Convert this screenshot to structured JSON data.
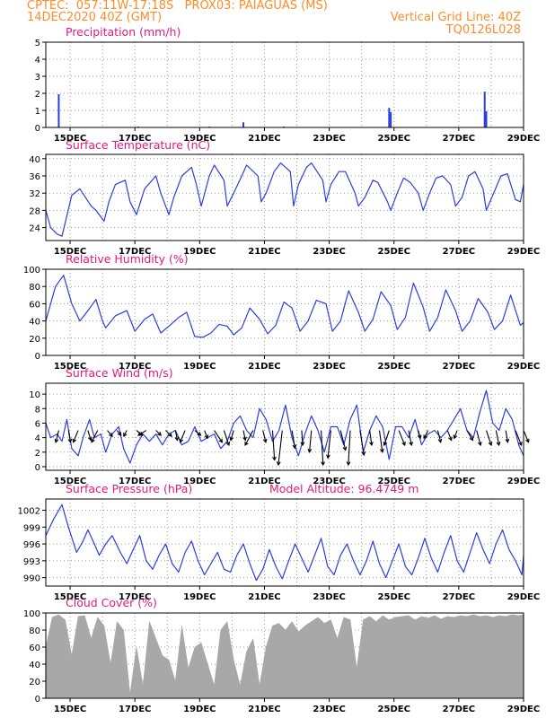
{
  "header": {
    "line1": "CPTEC:  057:11W-17:18S   PROX03: PAIAGUAS (MS)",
    "line2": "14DEC2020 40Z (GMT)",
    "grid_note": "Vertical Grid Line: 40Z",
    "code": "TQ0126L028"
  },
  "colors": {
    "header": "#ff8c2a",
    "title": "#e6197d",
    "series": "#2a3fe0",
    "cloud": "#a8a8a8",
    "wind_arrow": "#000000"
  },
  "x_axis": {
    "start_day": 14.25,
    "end_day": 29.0,
    "tick_days": [
      15,
      17,
      19,
      21,
      23,
      25,
      27,
      29
    ],
    "tick_labels": [
      "15DEC",
      "17DEC",
      "19DEC",
      "21DEC",
      "23DEC",
      "25DEC",
      "27DEC",
      "29DEC"
    ]
  },
  "chart_data": [
    {
      "type": "bar",
      "title": "Precipitation (mm/h)",
      "ylim": [
        0,
        5
      ],
      "yticks": [
        0,
        1,
        2,
        3,
        4,
        5
      ],
      "ytick_labels": [
        "0",
        "1",
        "2",
        "3",
        "4",
        "5"
      ],
      "x": [
        14.65,
        17.1,
        19.3,
        20.35,
        21.6,
        24.85,
        24.9,
        27.8,
        27.85
      ],
      "values": [
        1.95,
        0.05,
        0.05,
        0.3,
        0.05,
        1.15,
        0.9,
        2.1,
        0.95
      ]
    },
    {
      "type": "line",
      "title": "Surface Temperature (nC)",
      "ylim": [
        21,
        41
      ],
      "yticks": [
        24,
        28,
        32,
        36,
        40
      ],
      "ytick_labels": [
        "24",
        "28",
        "32",
        "36",
        "40"
      ],
      "x": [
        14.25,
        14.4,
        14.6,
        14.75,
        15.05,
        15.3,
        15.65,
        15.8,
        16.05,
        16.2,
        16.4,
        16.7,
        16.85,
        17.05,
        17.3,
        17.65,
        17.8,
        18.05,
        18.2,
        18.45,
        18.75,
        18.9,
        19.05,
        19.3,
        19.45,
        19.75,
        19.85,
        20.05,
        20.3,
        20.45,
        20.8,
        20.9,
        21.05,
        21.3,
        21.5,
        21.8,
        21.9,
        22.05,
        22.3,
        22.45,
        22.8,
        22.9,
        23.05,
        23.3,
        23.5,
        23.8,
        23.9,
        24.1,
        24.35,
        24.5,
        24.8,
        24.9,
        25.1,
        25.3,
        25.5,
        25.75,
        25.9,
        26.1,
        26.3,
        26.5,
        26.75,
        26.9,
        27.1,
        27.3,
        27.5,
        27.75,
        27.85,
        28.05,
        28.3,
        28.5,
        28.75,
        28.9,
        29.0
      ],
      "values": [
        28,
        24,
        22.5,
        22,
        31.5,
        33,
        29,
        28,
        25.5,
        30,
        34,
        35,
        30,
        27,
        33,
        36,
        32,
        27,
        31,
        36,
        38,
        34,
        29,
        36,
        38.5,
        35,
        29,
        32,
        36,
        38.5,
        36,
        30,
        32,
        37,
        39,
        37,
        29,
        34,
        38,
        39,
        35,
        30,
        34,
        37,
        37,
        32,
        29,
        31,
        35,
        34.5,
        30,
        28,
        32,
        35.5,
        34.5,
        32,
        28,
        32,
        35.5,
        36,
        34,
        29,
        31,
        36,
        37,
        33,
        28,
        31.5,
        36,
        36.5,
        30.5,
        30,
        34
      ]
    },
    {
      "type": "line",
      "title": "Relative Humidity (%)",
      "ylim": [
        0,
        100
      ],
      "yticks": [
        0,
        20,
        40,
        60,
        80,
        100
      ],
      "ytick_labels": [
        "0",
        "20",
        "40",
        "60",
        "80",
        "100"
      ],
      "x": [
        14.25,
        14.55,
        14.8,
        15.05,
        15.3,
        15.55,
        15.8,
        16.0,
        16.1,
        16.4,
        16.75,
        17.0,
        17.3,
        17.55,
        17.8,
        18.05,
        18.35,
        18.6,
        18.85,
        19.1,
        19.35,
        19.6,
        19.85,
        20.05,
        20.3,
        20.55,
        20.85,
        21.1,
        21.35,
        21.6,
        21.85,
        22.1,
        22.35,
        22.6,
        22.9,
        23.1,
        23.35,
        23.6,
        23.9,
        24.1,
        24.35,
        24.6,
        24.9,
        25.1,
        25.35,
        25.6,
        25.9,
        26.1,
        26.35,
        26.6,
        26.9,
        27.1,
        27.35,
        27.6,
        27.9,
        28.1,
        28.35,
        28.6,
        28.9,
        29.0
      ],
      "values": [
        40,
        80,
        93,
        60,
        40,
        52,
        65,
        40,
        32,
        46,
        52,
        28,
        42,
        48,
        26,
        34,
        44,
        50,
        22,
        21,
        26,
        36,
        34,
        24,
        32,
        55,
        42,
        25,
        35,
        62,
        55,
        28,
        40,
        64,
        60,
        28,
        40,
        75,
        50,
        28,
        42,
        74,
        58,
        30,
        44,
        84,
        56,
        28,
        44,
        76,
        52,
        28,
        40,
        66,
        50,
        30,
        40,
        70,
        35,
        38
      ]
    },
    {
      "type": "line",
      "title": "Surface Wind (m/s)",
      "ylim": [
        -0.5,
        11.5
      ],
      "yticks": [
        0,
        2,
        4,
        6,
        8,
        10
      ],
      "ytick_labels": [
        "0",
        "2",
        "4",
        "6",
        "8",
        "10"
      ],
      "x": [
        14.25,
        14.4,
        14.6,
        14.75,
        14.9,
        15.05,
        15.25,
        15.4,
        15.6,
        15.75,
        15.95,
        16.1,
        16.3,
        16.5,
        16.65,
        16.85,
        17.05,
        17.25,
        17.45,
        17.65,
        17.85,
        18.05,
        18.25,
        18.45,
        18.65,
        18.85,
        19.05,
        19.25,
        19.45,
        19.65,
        19.85,
        20.05,
        20.25,
        20.45,
        20.65,
        20.85,
        21.05,
        21.25,
        21.45,
        21.65,
        21.85,
        22.05,
        22.25,
        22.45,
        22.65,
        22.85,
        23.05,
        23.25,
        23.45,
        23.65,
        23.85,
        24.05,
        24.25,
        24.45,
        24.65,
        24.85,
        25.05,
        25.25,
        25.45,
        25.65,
        25.85,
        26.05,
        26.25,
        26.45,
        26.65,
        26.85,
        27.05,
        27.25,
        27.45,
        27.65,
        27.85,
        28.05,
        28.25,
        28.45,
        28.65,
        28.85,
        29.0
      ],
      "values": [
        6,
        4,
        4.5,
        3.5,
        6.5,
        2.5,
        1.5,
        4,
        6.5,
        4,
        4.5,
        2,
        4.5,
        5.5,
        2.5,
        0.5,
        3,
        4.5,
        3.5,
        4.5,
        3,
        4.5,
        5,
        3,
        3.5,
        5.5,
        3.5,
        4,
        4.5,
        2.5,
        3.5,
        6,
        7,
        5,
        4,
        8,
        6.5,
        3.5,
        5,
        8.5,
        4,
        1.5,
        4.5,
        7,
        5,
        2,
        5.5,
        5.5,
        3,
        6.5,
        8.5,
        2,
        5,
        7,
        5.5,
        1,
        5.5,
        5.5,
        4,
        6.5,
        3,
        4.5,
        5,
        4,
        5,
        6.5,
        8,
        5,
        4,
        7.5,
        10.5,
        6,
        5,
        8,
        6.5,
        3,
        1.5
      ]
    },
    {
      "type": "line",
      "title": "Surface Pressure (hPa)",
      "subtitle": "Model Altitude: 96.4749  m",
      "ylim": [
        988.5,
        1004
      ],
      "yticks": [
        990,
        993,
        996,
        999,
        1002
      ],
      "ytick_labels": [
        "990",
        "993",
        "996",
        "999",
        "1002"
      ],
      "x": [
        14.25,
        14.5,
        14.75,
        14.95,
        15.2,
        15.4,
        15.55,
        15.75,
        15.9,
        16.1,
        16.3,
        16.55,
        16.75,
        16.95,
        17.15,
        17.35,
        17.55,
        17.75,
        17.95,
        18.15,
        18.35,
        18.55,
        18.75,
        18.95,
        19.15,
        19.35,
        19.55,
        19.75,
        19.95,
        20.15,
        20.35,
        20.55,
        20.75,
        20.95,
        21.15,
        21.35,
        21.55,
        21.75,
        21.95,
        22.15,
        22.35,
        22.55,
        22.75,
        22.95,
        23.15,
        23.35,
        23.55,
        23.75,
        23.95,
        24.15,
        24.35,
        24.55,
        24.75,
        24.95,
        25.15,
        25.35,
        25.55,
        25.75,
        25.95,
        26.15,
        26.35,
        26.55,
        26.75,
        26.95,
        27.15,
        27.35,
        27.55,
        27.75,
        27.95,
        28.15,
        28.35,
        28.55,
        28.75,
        28.95,
        29.0
      ],
      "values": [
        997.5,
        1000.5,
        1003,
        999,
        994.5,
        996.5,
        998.5,
        996,
        994,
        996,
        997.5,
        994.5,
        992.5,
        995,
        997.5,
        993,
        991.5,
        994,
        996,
        992.5,
        991,
        994.5,
        996.5,
        993,
        990.5,
        992.5,
        994.5,
        991.5,
        991,
        994,
        996,
        992.5,
        989.5,
        991.5,
        995,
        992,
        989.8,
        993,
        996,
        993.5,
        991,
        994,
        997,
        992,
        990.5,
        994,
        996,
        993,
        990.5,
        993,
        996.5,
        992.5,
        990,
        993,
        996,
        992,
        990.5,
        993.5,
        997,
        993.5,
        991,
        994.5,
        997.5,
        993,
        991,
        994.5,
        998,
        995,
        992.5,
        996,
        998.5,
        995,
        993,
        990.5,
        994
      ]
    },
    {
      "type": "area",
      "title": "Cloud Cover (%)",
      "ylim": [
        0,
        100
      ],
      "yticks": [
        0,
        20,
        40,
        60,
        80,
        100
      ],
      "ytick_labels": [
        "0",
        "20",
        "40",
        "60",
        "80",
        "100"
      ],
      "x": [
        14.25,
        14.45,
        14.65,
        14.85,
        15.05,
        15.25,
        15.45,
        15.65,
        15.85,
        16.05,
        16.25,
        16.45,
        16.65,
        16.85,
        17.05,
        17.25,
        17.45,
        17.65,
        17.85,
        18.05,
        18.25,
        18.45,
        18.65,
        18.85,
        19.05,
        19.25,
        19.45,
        19.65,
        19.85,
        20.05,
        20.25,
        20.45,
        20.65,
        20.85,
        21.05,
        21.25,
        21.45,
        21.65,
        21.85,
        22.05,
        22.25,
        22.45,
        22.65,
        22.85,
        23.05,
        23.25,
        23.45,
        23.65,
        23.85,
        24.05,
        24.25,
        24.45,
        24.65,
        24.85,
        25.05,
        25.25,
        25.45,
        25.65,
        25.85,
        26.05,
        26.25,
        26.45,
        26.65,
        26.85,
        27.05,
        27.25,
        27.45,
        27.65,
        27.85,
        28.05,
        28.25,
        28.45,
        28.65,
        28.85,
        29.0
      ],
      "values": [
        60,
        95,
        98,
        92,
        50,
        96,
        97,
        70,
        95,
        85,
        40,
        90,
        80,
        5,
        60,
        15,
        90,
        70,
        50,
        45,
        20,
        85,
        35,
        60,
        65,
        40,
        15,
        80,
        90,
        45,
        15,
        55,
        70,
        15,
        60,
        85,
        88,
        80,
        90,
        78,
        85,
        90,
        95,
        88,
        92,
        70,
        95,
        92,
        35,
        92,
        96,
        90,
        97,
        92,
        95,
        96,
        97,
        92,
        96,
        94,
        97,
        93,
        96,
        95,
        97,
        96,
        98,
        96,
        97,
        95,
        97,
        96,
        98,
        97,
        98
      ]
    },
    {
      "type": "scatter",
      "title": "Surface Wind Vectors",
      "x": [
        14.65,
        14.95,
        15.25,
        15.55,
        15.85,
        16.15,
        16.45,
        16.75,
        17.05,
        17.35,
        17.65,
        17.95,
        18.25,
        18.55,
        18.85,
        19.15,
        19.45,
        19.75,
        20.05,
        20.35,
        20.65,
        20.95,
        21.25,
        21.55,
        21.85,
        22.15,
        22.45,
        22.75,
        23.05,
        23.35,
        23.65,
        23.95,
        24.25,
        24.55,
        24.85,
        25.15,
        25.45,
        25.75,
        26.05,
        26.35,
        26.65,
        26.95,
        27.25,
        27.55,
        27.85,
        28.15,
        28.45,
        28.75,
        29.0
      ],
      "u": [
        -0.3,
        0.2,
        -0.5,
        0.3,
        -0.6,
        0.5,
        0.4,
        -0.3,
        0.6,
        -0.8,
        0.5,
        0.6,
        0.2,
        -0.5,
        0.6,
        0.3,
        0.8,
        0.5,
        -0.3,
        0.2,
        -0.8,
        0.3,
        0.2,
        -0.4,
        0.3,
        0.1,
        -0.2,
        0.2,
        -0.3,
        0.5,
        -0.2,
        0.4,
        0.2,
        0.3,
        -0.5,
        0.6,
        0.3,
        0.2,
        -0.4,
        0.3,
        0.4,
        -0.3,
        0.6,
        0.4,
        0.5,
        0.3,
        0.2,
        0.6,
        0.5
      ],
      "v": [
        -1.2,
        -1.2,
        -1.2,
        -1.0,
        -1.2,
        -0.6,
        -0.5,
        -0.6,
        -0.5,
        -0.5,
        -0.5,
        -0.6,
        -1.0,
        -1.2,
        -0.5,
        -0.8,
        -1.2,
        -1.5,
        -1.0,
        -1.0,
        -1.5,
        -1.2,
        -3.0,
        -3.5,
        -1.8,
        -1.5,
        -2.2,
        -3.5,
        -2.8,
        -2.0,
        -3.5,
        -2.5,
        -1.5,
        -2.2,
        -1.5,
        -1.5,
        -1.5,
        -0.8,
        -0.8,
        -1.2,
        -1.0,
        -0.8,
        -1.0,
        -1.5,
        -1.5,
        -1.5,
        -1.2,
        -1.5,
        -1.2
      ]
    }
  ]
}
